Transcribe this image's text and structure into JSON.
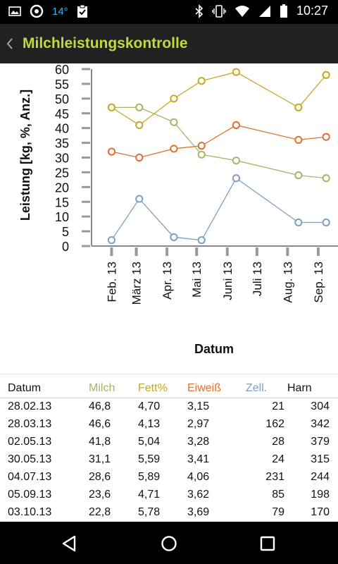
{
  "status_bar": {
    "temperature": "14°",
    "time": "10:27",
    "icons": [
      "image-icon",
      "sync-app-icon",
      "clipboard-check-icon",
      "bluetooth-icon",
      "vibrate-icon",
      "wifi-icon",
      "signal-icon",
      "battery-icon"
    ]
  },
  "action_bar": {
    "title": "Milchleistungskontrolle",
    "back_icon": "chevron-left-icon"
  },
  "colors": {
    "milch": "#a0b868",
    "fett": "#c8a828",
    "eiweiss": "#e07030",
    "zell": "#7ca0c4",
    "harn": "#222222",
    "title": "#c3d93a"
  },
  "chart_data": {
    "type": "line",
    "ylabel": "Leistung [kg, %, Anz.]",
    "xlabel": "Datum",
    "ylim": [
      0,
      60
    ],
    "y_ticks": [
      "0",
      "5",
      "10",
      "15",
      "20",
      "25",
      "30",
      "35",
      "40",
      "45",
      "50",
      "55",
      "60"
    ],
    "x_tick_labels": [
      "Feb. 13",
      "März 13",
      "Apr. 13",
      "Mai 13",
      "Juni 13",
      "Juli 13",
      "Aug. 13",
      "Sep. 13"
    ],
    "x": [
      "2013-02-28",
      "2013-03-28",
      "2013-05-02",
      "2013-05-30",
      "2013-07-04",
      "2013-09-05",
      "2013-10-03"
    ],
    "series": [
      {
        "name": "Milch",
        "color": "#a0b868",
        "values": [
          47,
          47,
          42,
          31,
          29,
          24,
          23
        ]
      },
      {
        "name": "Fett%",
        "color": "#c8a828",
        "values": [
          47,
          41,
          50,
          56,
          59,
          47,
          58
        ]
      },
      {
        "name": "Eiweiß",
        "color": "#e07030",
        "values": [
          32,
          30,
          33,
          34,
          41,
          36,
          37
        ]
      },
      {
        "name": "Zell.",
        "color": "#7ca0c4",
        "values": [
          2,
          16,
          3,
          2,
          23,
          8,
          8
        ]
      }
    ]
  },
  "table": {
    "headers": [
      "Datum",
      "Milch",
      "Fett%",
      "Eiweiß",
      "Zell.",
      "Harn"
    ],
    "rows": [
      [
        "28.02.13",
        "46,8",
        "4,70",
        "3,15",
        "21",
        "304"
      ],
      [
        "28.03.13",
        "46,6",
        "4,13",
        "2,97",
        "162",
        "342"
      ],
      [
        "02.05.13",
        "41,8",
        "5,04",
        "3,28",
        "28",
        "379"
      ],
      [
        "30.05.13",
        "31,1",
        "5,59",
        "3,41",
        "24",
        "315"
      ],
      [
        "04.07.13",
        "28,6",
        "5,89",
        "4,06",
        "231",
        "244"
      ],
      [
        "05.09.13",
        "23,6",
        "4,71",
        "3,62",
        "85",
        "198"
      ],
      [
        "03.10.13",
        "22,8",
        "5,78",
        "3,69",
        "79",
        "170"
      ]
    ]
  },
  "nav_bar": {
    "icons": [
      "back-triangle-icon",
      "home-circle-icon",
      "recents-square-icon"
    ]
  }
}
